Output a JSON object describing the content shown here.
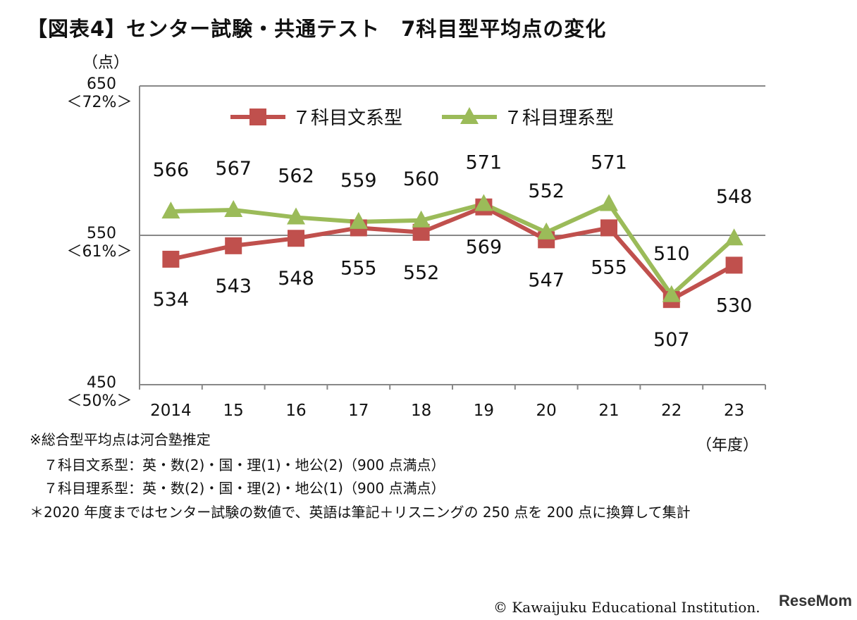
{
  "title": "【図表4】センター試験・共通テスト　7科目型平均点の変化",
  "chart_data": {
    "type": "line",
    "y_unit_label": "（点）",
    "x_unit_label": "（年度）",
    "categories": [
      "2014",
      "15",
      "16",
      "17",
      "18",
      "19",
      "20",
      "21",
      "22",
      "23"
    ],
    "ylim": [
      450,
      650
    ],
    "y_ticks": [
      {
        "value": 450,
        "label": "450",
        "pct": "＜50%＞"
      },
      {
        "value": 550,
        "label": "550",
        "pct": "＜61%＞"
      },
      {
        "value": 650,
        "label": "650",
        "pct": "＜72%＞"
      }
    ],
    "gridline_at": 550,
    "legend_position": "top",
    "series": [
      {
        "name": "７科目文系型",
        "color": "#c0504d",
        "marker": "square",
        "values": [
          534,
          543,
          548,
          555,
          552,
          569,
          547,
          555,
          507,
          530
        ],
        "label_side": [
          "below",
          "below",
          "below",
          "below",
          "below",
          "below",
          "below",
          "above",
          "below",
          "below"
        ]
      },
      {
        "name": "７科目理系型",
        "color": "#9bbb59",
        "marker": "triangle",
        "values": [
          566,
          567,
          562,
          559,
          560,
          571,
          552,
          571,
          510,
          548
        ],
        "label_side": [
          "above",
          "above",
          "above",
          "above",
          "above",
          "above",
          "above",
          "above",
          "above",
          "above"
        ]
      }
    ]
  },
  "notes": {
    "line1": "※総合型平均点は河合塾推定",
    "line2": "７科目文系型：英・数(2)・国・理(1)・地公(2)（900 点満点）",
    "line3": "７科目理系型：英・数(2)・国・理(2)・地公(1)（900 点満点）",
    "line4": "＊2020 年度まではセンター試験の数値で、英語は筆記＋リスニングの 250 点を 200 点に換算して集計"
  },
  "copyright": "© Kawaijuku Educational Institution.",
  "logo": "ReseMom"
}
